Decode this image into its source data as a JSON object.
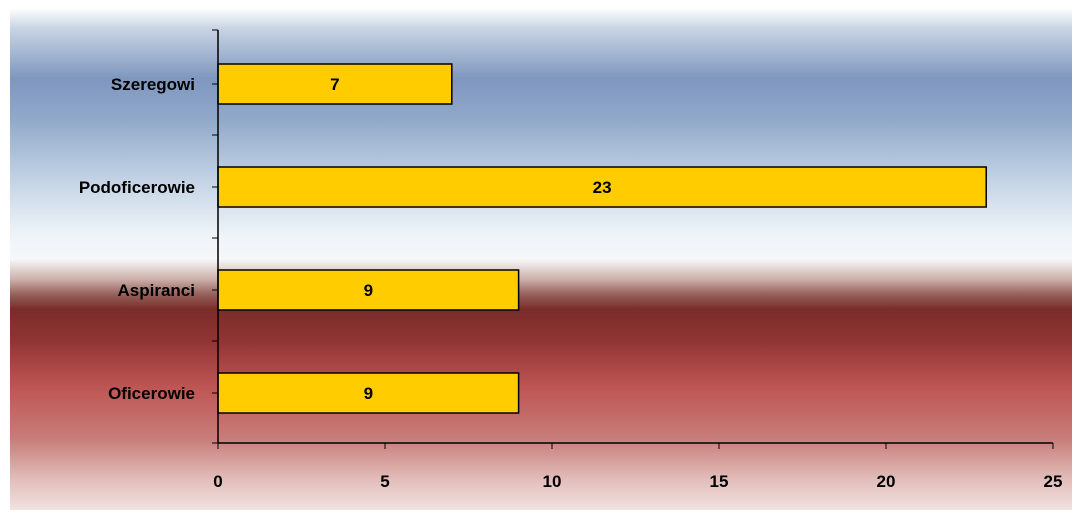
{
  "chart_data": {
    "type": "bar",
    "orientation": "horizontal",
    "title": "",
    "xlabel": "",
    "ylabel": "",
    "categories": [
      "Szeregowi",
      "Podoficerowie",
      "Aspiranci",
      "Oficerowie"
    ],
    "values": [
      7,
      23,
      9,
      9
    ],
    "data_labels": [
      "7",
      "23",
      "9",
      "9"
    ],
    "xlim": [
      0,
      25
    ],
    "x_ticks": [
      "0",
      "5",
      "10",
      "15",
      "20",
      "25"
    ],
    "grid": false,
    "legend": "none",
    "bar_color": "#FFCC00",
    "bar_border_color": "#000000",
    "background": "gradient blue-white top, dark red bottom"
  }
}
